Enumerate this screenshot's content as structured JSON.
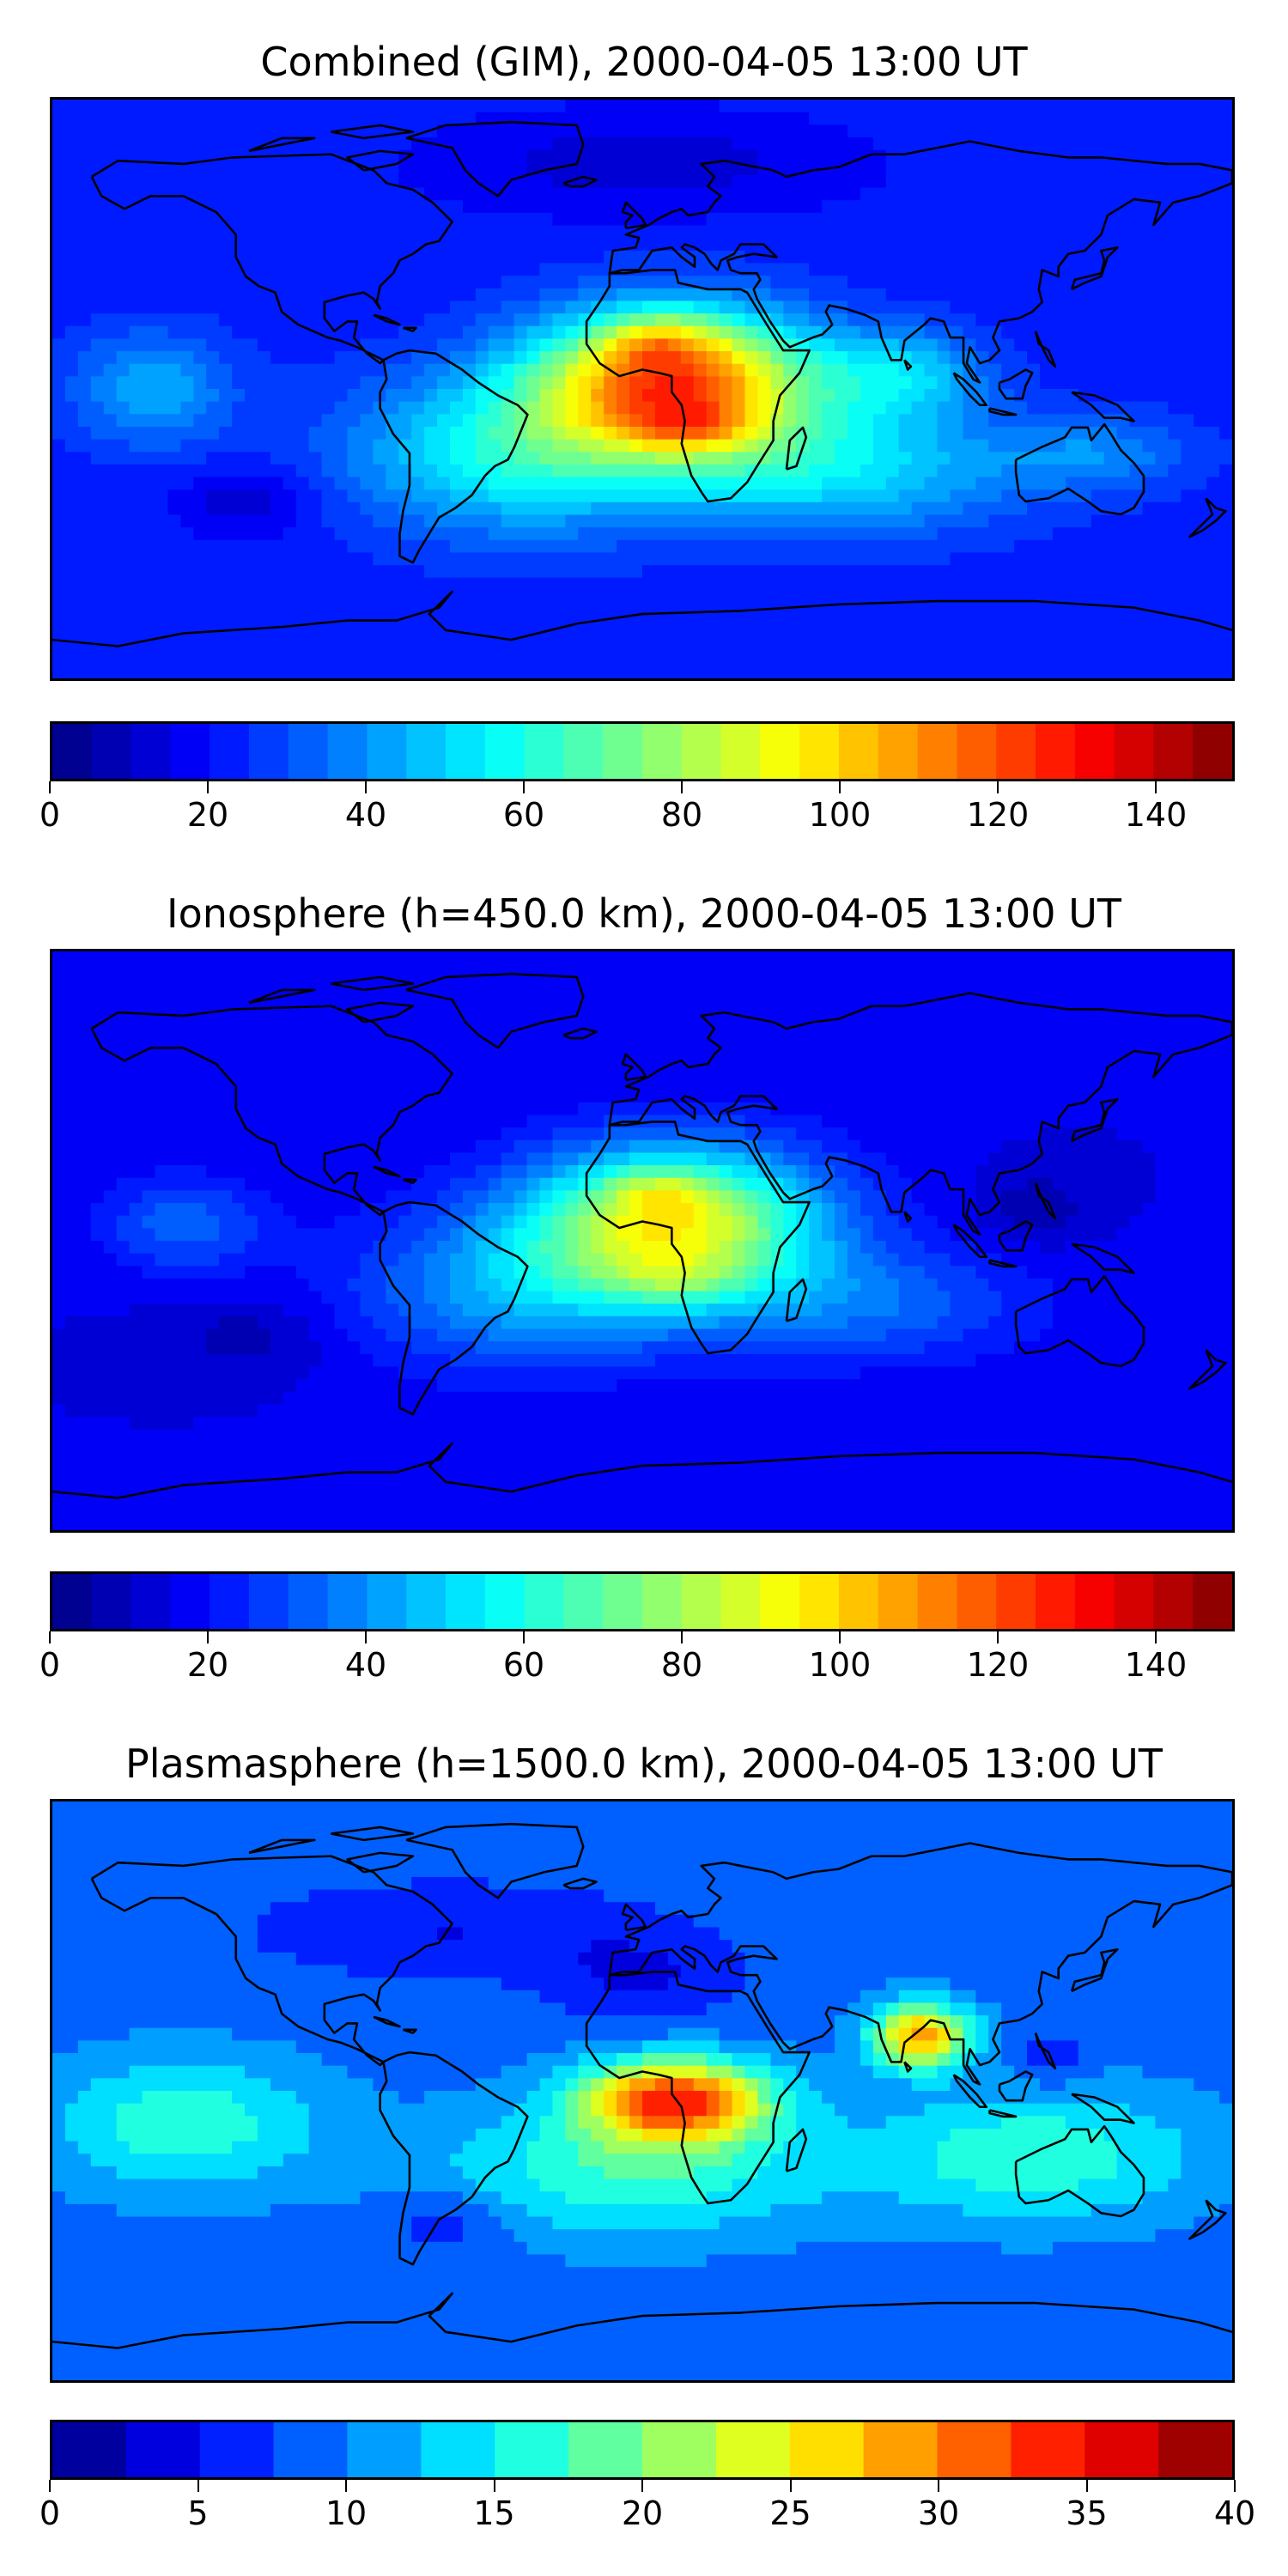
{
  "panels": [
    {
      "title": "Combined (GIM), 2000-04-05 13:00 UT",
      "colorbar": {
        "min": 0,
        "max": 150,
        "levels": 30,
        "ticks": [
          "0",
          "20",
          "40",
          "60",
          "80",
          "100",
          "120",
          "140"
        ],
        "tick_values": [
          0,
          20,
          40,
          60,
          80,
          100,
          120,
          140
        ]
      },
      "field": {
        "base": 22,
        "blobs": [
          {
            "lon": 10,
            "lat": 2,
            "amp": 95,
            "slon": 42,
            "slat": 22
          },
          {
            "lon": 5,
            "lat": 15,
            "amp": 20,
            "slon": 16,
            "slat": 8
          },
          {
            "lon": 15,
            "lat": -12,
            "amp": 20,
            "slon": 18,
            "slat": 7
          },
          {
            "lon": 80,
            "lat": 5,
            "amp": 25,
            "slon": 25,
            "slat": 14
          },
          {
            "lon": -40,
            "lat": -20,
            "amp": 35,
            "slon": 50,
            "slat": 25
          },
          {
            "lon": 60,
            "lat": -25,
            "amp": 30,
            "slon": 55,
            "slat": 20
          },
          {
            "lon": -150,
            "lat": 0,
            "amp": 22,
            "slon": 25,
            "slat": 18
          },
          {
            "lon": 140,
            "lat": -20,
            "amp": 15,
            "slon": 30,
            "slat": 12
          },
          {
            "lon": -120,
            "lat": -35,
            "amp": -12,
            "slon": 20,
            "slat": 10
          },
          {
            "lon": 0,
            "lat": 70,
            "amp": -10,
            "slon": 60,
            "slat": 15
          }
        ]
      }
    },
    {
      "title": "Ionosphere  (h=450.0 km), 2000-04-05 13:00 UT",
      "colorbar": {
        "min": 0,
        "max": 150,
        "levels": 30,
        "ticks": [
          "0",
          "20",
          "40",
          "60",
          "80",
          "100",
          "120",
          "140"
        ],
        "tick_values": [
          0,
          20,
          40,
          60,
          80,
          100,
          120,
          140
        ]
      },
      "field": {
        "base": 15,
        "blobs": [
          {
            "lon": 10,
            "lat": 5,
            "amp": 75,
            "slon": 45,
            "slat": 24
          },
          {
            "lon": 5,
            "lat": 15,
            "amp": 15,
            "slon": 15,
            "slat": 7
          },
          {
            "lon": 10,
            "lat": -12,
            "amp": 12,
            "slon": 20,
            "slat": 7
          },
          {
            "lon": -40,
            "lat": -15,
            "amp": 25,
            "slon": 50,
            "slat": 25
          },
          {
            "lon": 70,
            "lat": -20,
            "amp": 18,
            "slon": 50,
            "slat": 18
          },
          {
            "lon": -140,
            "lat": 5,
            "amp": 18,
            "slon": 25,
            "slat": 15
          },
          {
            "lon": 120,
            "lat": 10,
            "amp": -10,
            "slon": 15,
            "slat": 10
          },
          {
            "lon": -120,
            "lat": -30,
            "amp": -8,
            "slon": 25,
            "slat": 12
          }
        ]
      }
    },
    {
      "title": "Plasmasphere (h=1500.0 km), 2000-04-05 13:00 UT",
      "colorbar": {
        "min": 0,
        "max": 40,
        "levels": 16,
        "ticks": [
          "0",
          "5",
          "10",
          "15",
          "20",
          "25",
          "30",
          "35",
          "40"
        ],
        "tick_values": [
          0,
          5,
          10,
          15,
          20,
          25,
          30,
          35,
          40
        ]
      },
      "field": {
        "base": 9,
        "blobs": [
          {
            "lon": 10,
            "lat": -3,
            "amp": 24,
            "slon": 28,
            "slat": 13
          },
          {
            "lon": 85,
            "lat": 17,
            "amp": 20,
            "slon": 15,
            "slat": 10
          },
          {
            "lon": -5,
            "lat": -25,
            "amp": 8,
            "slon": 60,
            "slat": 20
          },
          {
            "lon": 120,
            "lat": -20,
            "amp": 8,
            "slon": 50,
            "slat": 20
          },
          {
            "lon": -140,
            "lat": -10,
            "amp": 8,
            "slon": 40,
            "slat": 20
          },
          {
            "lon": 0,
            "lat": 35,
            "amp": -4,
            "slon": 30,
            "slat": 15
          },
          {
            "lon": -60,
            "lat": 50,
            "amp": -4,
            "slon": 60,
            "slat": 15
          },
          {
            "lon": -60,
            "lat": -40,
            "amp": -4,
            "slon": 20,
            "slat": 10
          },
          {
            "lon": 125,
            "lat": 10,
            "amp": -4,
            "slon": 10,
            "slat": 8
          }
        ]
      }
    }
  ]
}
